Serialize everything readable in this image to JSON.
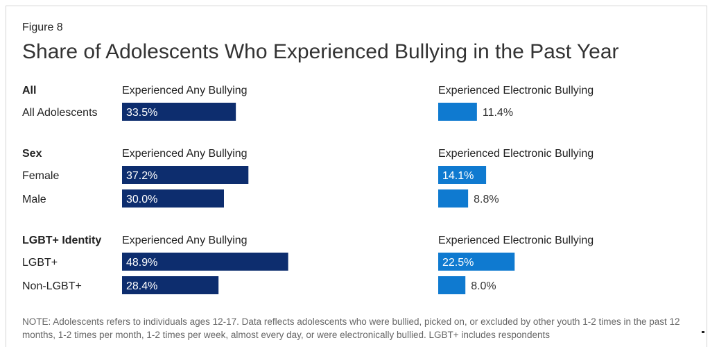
{
  "figure_label": "Figure 8",
  "title": "Share of Adolescents Who Experienced Bullying in the Past Year",
  "note": "NOTE: Adolescents refers to individuals ages 12-17. Data reflects adolescents who were bullied, picked on, or excluded by other youth 1-2 times in the past 12 months, 1-2 times per month, 1-2 times per week, almost every day, or were electronically bullied. LGBT+ includes respondents",
  "colors": {
    "any_bullying": "#0d2d6e",
    "electronic_bullying": "#0f7ad0",
    "text": "#222222"
  },
  "chart_data": {
    "type": "bar",
    "orientation": "horizontal",
    "series": [
      {
        "name": "Experienced Any Bullying",
        "key": "any"
      },
      {
        "name": "Experienced Electronic Bullying",
        "key": "electronic"
      }
    ],
    "groups": [
      {
        "label": "All",
        "rows": [
          {
            "label": "All Adolescents",
            "any": 33.5,
            "electronic": 11.4
          }
        ]
      },
      {
        "label": "Sex",
        "rows": [
          {
            "label": "Female",
            "any": 37.2,
            "electronic": 14.1
          },
          {
            "label": "Male",
            "any": 30.0,
            "electronic": 8.8
          }
        ]
      },
      {
        "label": "LGBT+ Identity",
        "rows": [
          {
            "label": "LGBT+",
            "any": 48.9,
            "electronic": 22.5
          },
          {
            "label": "Non-LGBT+",
            "any": 28.4,
            "electronic": 8.0
          }
        ]
      }
    ],
    "value_format": "{v}%",
    "xlim": [
      0,
      100
    ],
    "grid": false,
    "legend": "none"
  }
}
